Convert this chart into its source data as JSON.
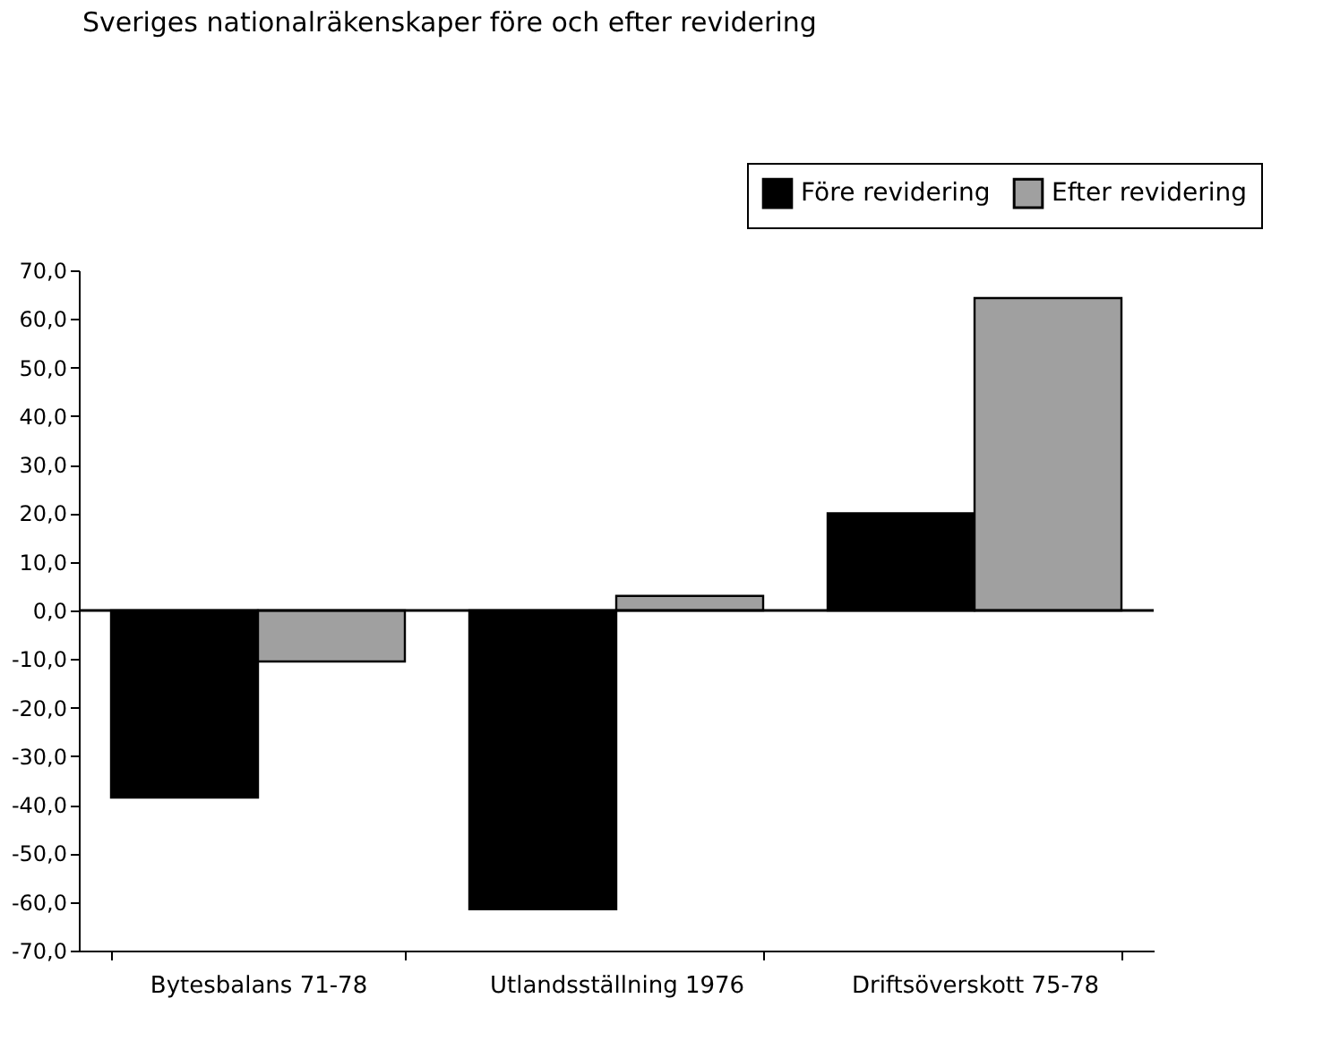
{
  "chart_data": {
    "type": "bar",
    "title": "Sveriges nationalräkenskaper före och efter revidering",
    "categories": [
      "Bytesbalans 71-78",
      "Utlandsställning 1976",
      "Driftsöverskott 75-78"
    ],
    "series": [
      {
        "name": "Före revidering",
        "color": "#000000",
        "values": [
          -38.5,
          -61.5,
          20
        ]
      },
      {
        "name": "Efter revidering",
        "color": "#a0a0a0",
        "values": [
          -10.5,
          3,
          64.3
        ]
      }
    ],
    "ylim": [
      -70,
      70
    ],
    "yticks": [
      {
        "value": -70,
        "label": "-70,0"
      },
      {
        "value": -60,
        "label": "-60,0"
      },
      {
        "value": -50,
        "label": "-50,0"
      },
      {
        "value": -40,
        "label": "-40,0"
      },
      {
        "value": -30,
        "label": "-30,0"
      },
      {
        "value": -20,
        "label": "-20,0"
      },
      {
        "value": -10,
        "label": "-10,0"
      },
      {
        "value": 0,
        "label": "0,0"
      },
      {
        "value": 10,
        "label": "10,0"
      },
      {
        "value": 20,
        "label": "20,0"
      },
      {
        "value": 30,
        "label": "30,0"
      },
      {
        "value": 40,
        "label": "40,0"
      },
      {
        "value": 50,
        "label": "50,0"
      },
      {
        "value": 60,
        "label": "60,0"
      },
      {
        "value": 70,
        "label": "70,0"
      }
    ],
    "ref_lines": [
      {
        "axis": "y",
        "value": 0
      }
    ],
    "grid": false,
    "legend": "top right"
  }
}
